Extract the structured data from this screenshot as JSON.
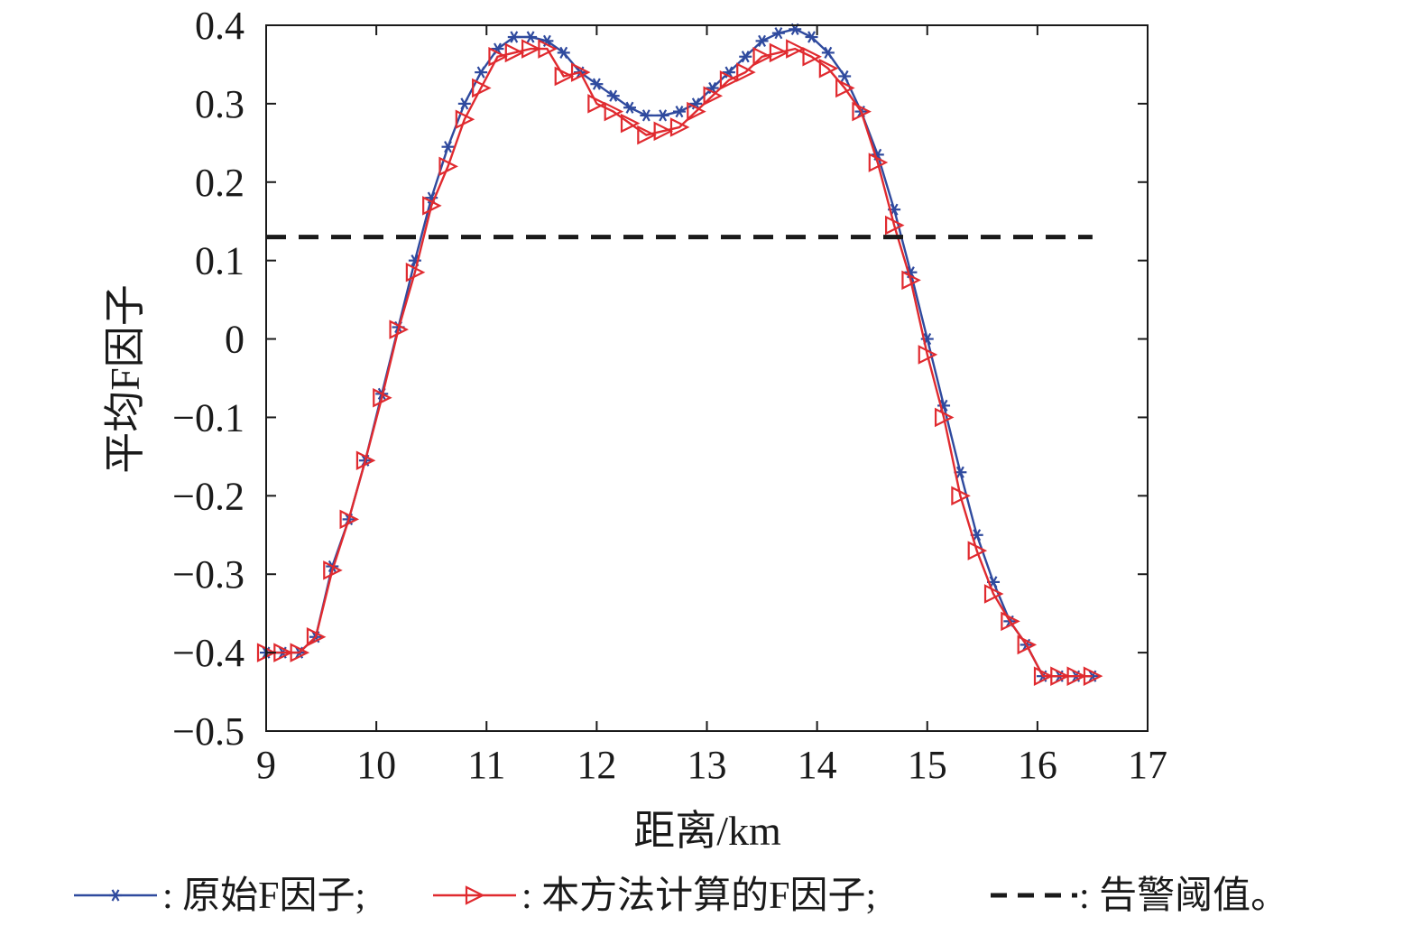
{
  "chart_data": {
    "type": "line",
    "xlabel": "距离/km",
    "ylabel": "平均F因子",
    "xlim": [
      9,
      17
    ],
    "ylim": [
      -0.5,
      0.4
    ],
    "xticks": [
      "9",
      "10",
      "11",
      "12",
      "13",
      "14",
      "15",
      "16",
      "17"
    ],
    "yticks": [
      "0.4",
      "0.3",
      "0.2",
      "0.1",
      "0",
      "−0.1",
      "−0.2",
      "−0.3",
      "−0.4",
      "−0.5"
    ],
    "grid": false,
    "legend_position": "bottom",
    "x": [
      9.0,
      9.15,
      9.3,
      9.45,
      9.6,
      9.75,
      9.9,
      10.05,
      10.2,
      10.35,
      10.5,
      10.65,
      10.8,
      10.95,
      11.1,
      11.25,
      11.4,
      11.55,
      11.7,
      11.85,
      12.0,
      12.15,
      12.3,
      12.45,
      12.6,
      12.75,
      12.9,
      13.05,
      13.2,
      13.35,
      13.5,
      13.65,
      13.8,
      13.95,
      14.1,
      14.25,
      14.4,
      14.55,
      14.7,
      14.85,
      15.0,
      15.15,
      15.3,
      15.45,
      15.6,
      15.75,
      15.9,
      16.05,
      16.2,
      16.35,
      16.5
    ],
    "series": [
      {
        "name": "原始F因子",
        "color": "#2f4a9e",
        "marker": "asterisk",
        "values": [
          -0.4,
          -0.4,
          -0.4,
          -0.38,
          -0.29,
          -0.23,
          -0.155,
          -0.07,
          0.015,
          0.1,
          0.18,
          0.245,
          0.3,
          0.34,
          0.37,
          0.385,
          0.385,
          0.38,
          0.365,
          0.34,
          0.325,
          0.31,
          0.295,
          0.285,
          0.285,
          0.29,
          0.3,
          0.32,
          0.34,
          0.36,
          0.38,
          0.39,
          0.395,
          0.385,
          0.365,
          0.335,
          0.29,
          0.235,
          0.165,
          0.085,
          0.0,
          -0.085,
          -0.17,
          -0.25,
          -0.31,
          -0.36,
          -0.39,
          -0.43,
          -0.43,
          -0.43,
          -0.43
        ]
      },
      {
        "name": "本方法计算的F因子",
        "color": "#e02a2f",
        "marker": "triangle-right",
        "values": [
          -0.4,
          -0.4,
          -0.4,
          -0.38,
          -0.295,
          -0.23,
          -0.155,
          -0.075,
          0.012,
          0.085,
          0.17,
          0.22,
          0.28,
          0.32,
          0.36,
          0.365,
          0.37,
          0.37,
          0.335,
          0.34,
          0.3,
          0.29,
          0.275,
          0.26,
          0.265,
          0.27,
          0.29,
          0.31,
          0.33,
          0.34,
          0.36,
          0.365,
          0.37,
          0.36,
          0.345,
          0.32,
          0.29,
          0.225,
          0.145,
          0.075,
          -0.02,
          -0.1,
          -0.2,
          -0.27,
          -0.325,
          -0.36,
          -0.39,
          -0.43,
          -0.43,
          -0.43,
          -0.43
        ]
      },
      {
        "name": "告警阈值",
        "color": "#1a1a1a",
        "style": "dashed",
        "x": [
          9.0,
          16.5
        ],
        "values": [
          0.13,
          0.13
        ]
      }
    ],
    "legend": [
      {
        "symbol": "line-asterisk",
        "color": "#2f4a9e",
        "text": ": 原始F因子;"
      },
      {
        "symbol": "line-triangle",
        "color": "#e02a2f",
        "text": ": 本方法计算的F因子;"
      },
      {
        "symbol": "dashed",
        "color": "#1a1a1a",
        "text": ": 告警阈值。"
      }
    ]
  }
}
